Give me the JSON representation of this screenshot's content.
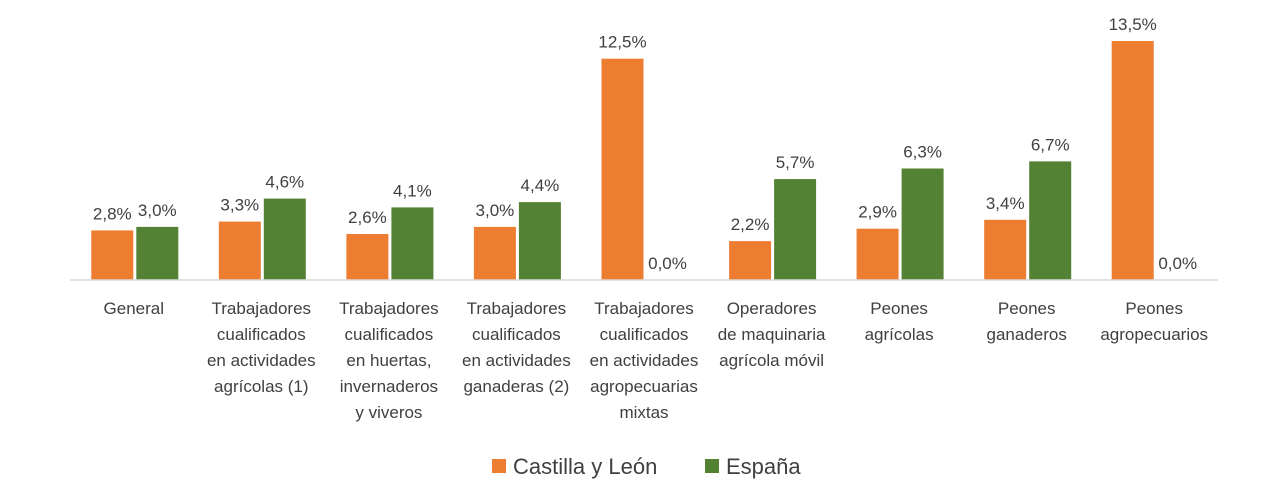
{
  "chart_data": {
    "type": "bar",
    "categories": [
      [
        "General"
      ],
      [
        "Trabajadores",
        "cualificados",
        "en actividades",
        "agrícolas (1)"
      ],
      [
        "Trabajadores",
        "cualificados",
        "en huertas,",
        "invernaderos",
        "y viveros"
      ],
      [
        "Trabajadores",
        "cualificados",
        "en actividades",
        "ganaderas (2)"
      ],
      [
        "Trabajadores",
        "cualificados",
        "en actividades",
        "agropecuarias",
        "mixtas"
      ],
      [
        "Operadores",
        "de maquinaria",
        "agrícola móvil"
      ],
      [
        "Peones",
        "agrícolas"
      ],
      [
        "Peones",
        "ganaderos"
      ],
      [
        "Peones",
        "agropecuarios"
      ]
    ],
    "series": [
      {
        "name": "Castilla y León",
        "color": "#ED7D31",
        "values": [
          2.8,
          3.3,
          2.6,
          3.0,
          12.5,
          2.2,
          2.9,
          3.4,
          13.5
        ],
        "labels": [
          "2,8%",
          "3,3%",
          "2,6%",
          "3,0%",
          "12,5%",
          "2,2%",
          "2,9%",
          "3,4%",
          "13,5%"
        ]
      },
      {
        "name": "España",
        "color": "#548235",
        "values": [
          3.0,
          4.6,
          4.1,
          4.4,
          0.0,
          5.7,
          6.3,
          6.7,
          0.0
        ],
        "labels": [
          "3,0%",
          "4,6%",
          "4,1%",
          "4,4%",
          "0,0%",
          "5,7%",
          "6,3%",
          "6,7%",
          "0,0%"
        ]
      }
    ],
    "ylim": [
      0,
      14
    ],
    "grid": false,
    "axis_color": "#D9D9D9",
    "legend_position": "bottom"
  }
}
